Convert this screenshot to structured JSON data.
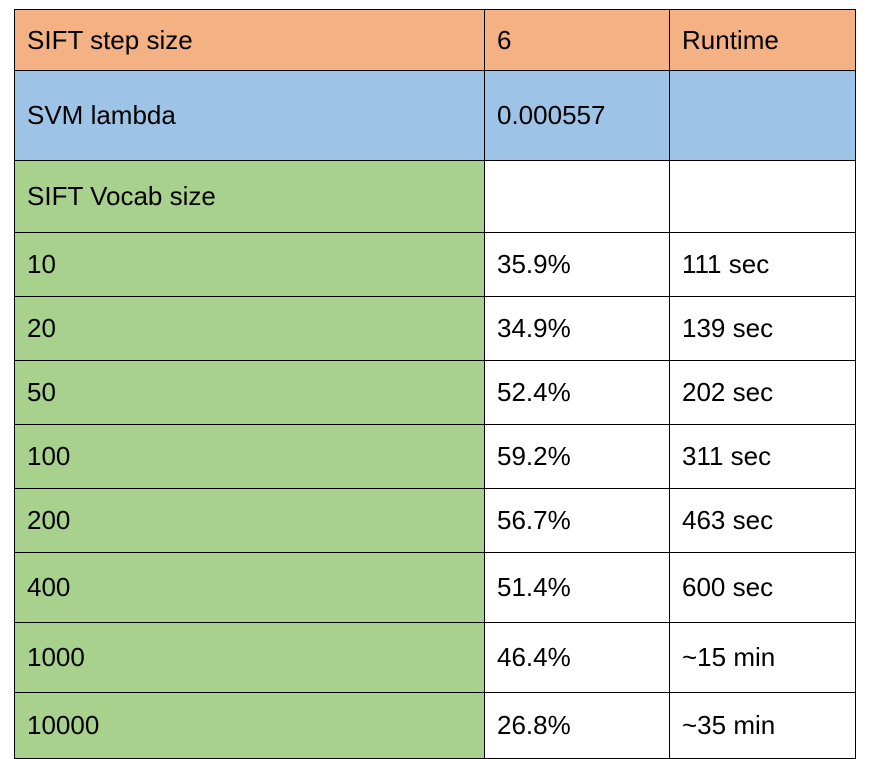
{
  "colors": {
    "header_bg": "#F4B183",
    "lambda_bg": "#9DC3E6",
    "vocab_bg": "#A9D18E",
    "plain_bg": "#FFFFFF",
    "border": "#000000"
  },
  "header": {
    "label": "SIFT step size",
    "value": "6",
    "runtime_label": "Runtime"
  },
  "lambda": {
    "label": "SVM lambda",
    "value": "0.000557",
    "runtime": ""
  },
  "vocab_header": {
    "label": "SIFT  Vocab size",
    "value": "",
    "runtime": ""
  },
  "rows": [
    {
      "vocab": "10",
      "accuracy": "35.9%",
      "runtime": "111 sec"
    },
    {
      "vocab": "20",
      "accuracy": "34.9%",
      "runtime": "139 sec"
    },
    {
      "vocab": "50",
      "accuracy": "52.4%",
      "runtime": "202 sec"
    },
    {
      "vocab": "100",
      "accuracy": "59.2%",
      "runtime": "311 sec"
    },
    {
      "vocab": "200",
      "accuracy": "56.7%",
      "runtime": "463 sec"
    },
    {
      "vocab": "400",
      "accuracy": "51.4%",
      "runtime": "600 sec"
    },
    {
      "vocab": "1000",
      "accuracy": "46.4%",
      "runtime": "~15 min"
    },
    {
      "vocab": "10000",
      "accuracy": "26.8%",
      "runtime": "~35 min"
    }
  ]
}
